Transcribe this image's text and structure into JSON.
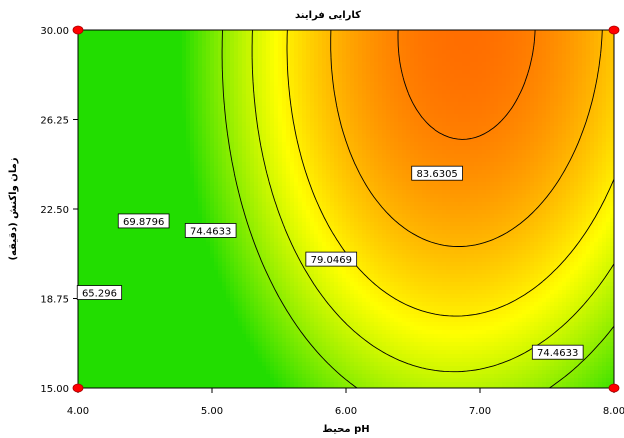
{
  "chart_data": {
    "type": "contour",
    "title": "کارایی فرایند",
    "xlabel": "pH محیط",
    "ylabel": "زمان واکنش (دقیقه)",
    "xlim": [
      4.0,
      8.0
    ],
    "ylim": [
      15.0,
      30.0
    ],
    "x_ticks": [
      "4.00",
      "5.00",
      "6.00",
      "7.00",
      "8.00"
    ],
    "y_ticks": [
      "15.00",
      "18.75",
      "22.50",
      "26.25",
      "30.00"
    ],
    "color_low": "#22dd00",
    "color_mid": "#ffff00",
    "color_high": "#ff6a00",
    "contour_levels": [
      {
        "label": "65.296",
        "value": 65.296
      },
      {
        "label": "69.8796",
        "value": 69.8796
      },
      {
        "label": "74.4633",
        "value": 74.4633
      },
      {
        "label": "79.0469",
        "value": 79.0469
      },
      {
        "label": "83.6305",
        "value": 83.6305
      }
    ],
    "contour_labels": [
      {
        "text": "65.296",
        "x": 4.16,
        "y": 19.0
      },
      {
        "text": "69.8796",
        "x": 4.49,
        "y": 22.0
      },
      {
        "text": "74.4633",
        "x": 4.99,
        "y": 21.6
      },
      {
        "text": "79.0469",
        "x": 5.89,
        "y": 20.4
      },
      {
        "text": "83.6305",
        "x": 6.68,
        "y": 24.0
      },
      {
        "text": "74.4633",
        "x": 7.58,
        "y": 16.5
      }
    ],
    "design_points": [
      {
        "x": 4.0,
        "y": 15.0
      },
      {
        "x": 4.0,
        "y": 30.0
      },
      {
        "x": 8.0,
        "y": 15.0
      },
      {
        "x": 8.0,
        "y": 30.0
      }
    ],
    "grid": false,
    "legend": "none"
  }
}
